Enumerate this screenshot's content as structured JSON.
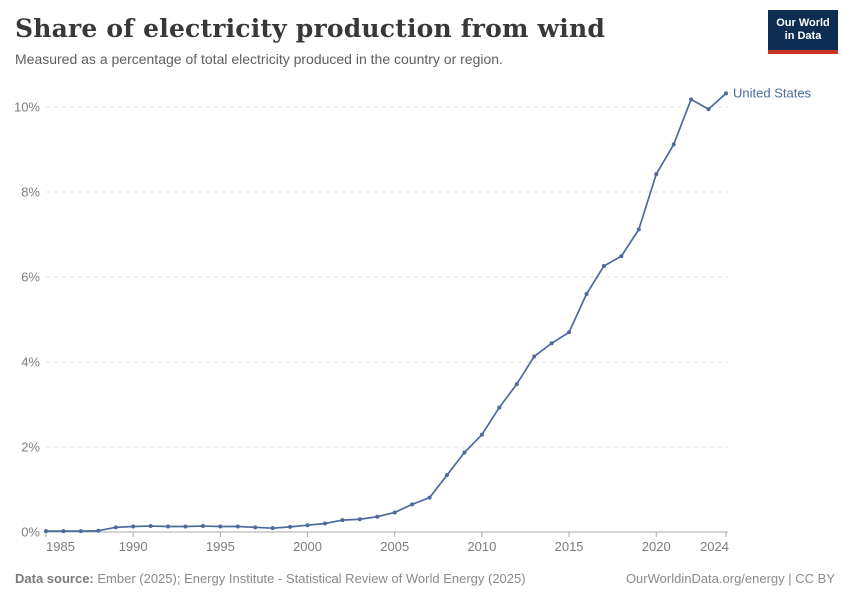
{
  "header": {
    "title": "Share of electricity production from wind",
    "subtitle": "Measured as a percentage of total electricity produced in the country or region.",
    "logo": {
      "line1": "Our World",
      "line2": "in Data"
    }
  },
  "chart_data": {
    "type": "line",
    "title": "Share of electricity production from wind",
    "xlabel": "",
    "ylabel": "",
    "grid": "horizontal-dashed",
    "legend_position": "end-of-line-label",
    "xlim": [
      1985,
      2024
    ],
    "ylim": [
      0,
      10.6
    ],
    "x_ticks": [
      1985,
      1990,
      1995,
      2000,
      2005,
      2010,
      2015,
      2020,
      2024
    ],
    "x_tick_labels": [
      "1985",
      "1990",
      "1995",
      "2000",
      "2005",
      "2010",
      "2015",
      "2020",
      "2024"
    ],
    "y_ticks": [
      0,
      2,
      4,
      6,
      8,
      10
    ],
    "y_tick_labels": [
      "0%",
      "2%",
      "4%",
      "6%",
      "8%",
      "10%"
    ],
    "x": [
      1985,
      1986,
      1987,
      1988,
      1989,
      1990,
      1991,
      1992,
      1993,
      1994,
      1995,
      1996,
      1997,
      1998,
      1999,
      2000,
      2001,
      2002,
      2003,
      2004,
      2005,
      2006,
      2007,
      2008,
      2009,
      2010,
      2011,
      2012,
      2013,
      2014,
      2015,
      2016,
      2017,
      2018,
      2019,
      2020,
      2021,
      2022,
      2023,
      2024
    ],
    "series": [
      {
        "name": "United States",
        "color": "#4C6A9C",
        "values": [
          0.02,
          0.02,
          0.02,
          0.03,
          0.11,
          0.13,
          0.14,
          0.13,
          0.13,
          0.14,
          0.13,
          0.13,
          0.11,
          0.09,
          0.12,
          0.16,
          0.2,
          0.28,
          0.3,
          0.36,
          0.46,
          0.65,
          0.81,
          1.34,
          1.87,
          2.29,
          2.93,
          3.48,
          4.13,
          4.44,
          4.7,
          5.6,
          6.26,
          6.49,
          7.12,
          8.42,
          9.12,
          10.18,
          9.95,
          10.32
        ]
      }
    ]
  },
  "footer": {
    "source_label": "Data source:",
    "source_text": " Ember (2025); Energy Institute - Statistical Review of World Energy (2025)",
    "rights": "OurWorldinData.org/energy | CC BY"
  },
  "colors": {
    "accent": "#4C6A9C",
    "grid": "#e3e3e3",
    "axis": "#a8a8a8",
    "tick_text": "#7d7d7d",
    "logo_bg": "#0d2e52",
    "logo_bar": "#c9332b"
  }
}
